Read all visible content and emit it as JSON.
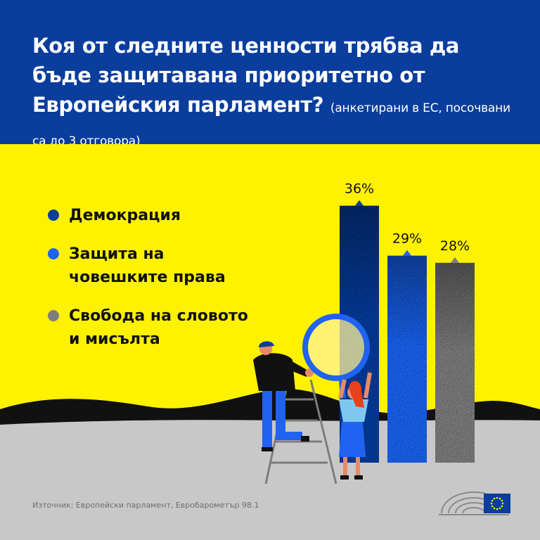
{
  "header": {
    "title": "Коя от следните ценности трябва да бъде защитавана приоритетно от Европейския парламент?",
    "subtitle": "(анкетирани в ЕС, посочвани са до 3 отговора)"
  },
  "colors": {
    "header_bg": "#0a3d9c",
    "yellow": "#fff200",
    "ground": "#c8c8c8",
    "series_1": "#0a3d9c",
    "series_2": "#1f63f0",
    "series_3": "#7d7d7d"
  },
  "chart_data": {
    "type": "bar",
    "categories": [
      "Демокрация",
      "Защита на човешките права",
      "Свобода на словото и мисълта"
    ],
    "values": [
      36,
      29,
      28
    ],
    "data_labels": [
      "36%",
      "29%",
      "28%"
    ],
    "colors": [
      "#0a3d9c",
      "#1f63f0",
      "#7d7d7d"
    ],
    "ylim": [
      0,
      40
    ],
    "grid": false,
    "legend_position": "left"
  },
  "legend": {
    "items": [
      {
        "lines": [
          "Демокрация"
        ],
        "color": "#0a3d9c"
      },
      {
        "lines": [
          "Защита на",
          "човешките права"
        ],
        "color": "#1f63f0"
      },
      {
        "lines": [
          "Свобода на словото",
          "и мисълта"
        ],
        "color": "#7d7d7d"
      }
    ]
  },
  "source": "Източник: Европейски парламент, Евробарометър 98.1",
  "icons": [
    "european-parliament-hemicycle-icon",
    "eu-flag-icon"
  ]
}
